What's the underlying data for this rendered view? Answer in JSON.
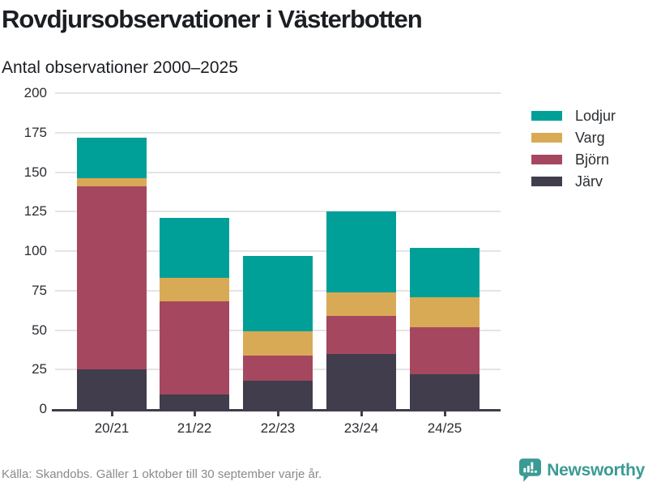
{
  "header": {
    "title": "Rovdjursobservationer i Västerbotten",
    "subtitle": "Antal observationer 2000–2025"
  },
  "legend": [
    {
      "label": "Lodjur",
      "color": "#00a099"
    },
    {
      "label": "Varg",
      "color": "#d9aa55"
    },
    {
      "label": "Björn",
      "color": "#a64760"
    },
    {
      "label": "Järv",
      "color": "#413d4c"
    }
  ],
  "chart_data": {
    "type": "bar",
    "stacked": true,
    "title": "Rovdjursobservationer i Västerbotten",
    "subtitle": "Antal observationer 2000–2025",
    "categories": [
      "20/21",
      "21/22",
      "22/23",
      "23/24",
      "24/25"
    ],
    "series": [
      {
        "name": "Järv",
        "color": "#413d4c",
        "values": [
          25,
          9,
          18,
          35,
          22
        ]
      },
      {
        "name": "Björn",
        "color": "#a64760",
        "values": [
          116,
          59,
          16,
          24,
          30
        ]
      },
      {
        "name": "Varg",
        "color": "#d9aa55",
        "values": [
          5,
          15,
          15,
          15,
          19
        ]
      },
      {
        "name": "Lodjur",
        "color": "#00a099",
        "values": [
          26,
          38,
          48,
          51,
          31
        ]
      }
    ],
    "totals": [
      172,
      121,
      97,
      125,
      102
    ],
    "xlabel": "",
    "ylabel": "Antal observationer",
    "ylim": [
      0,
      200
    ],
    "yticks": [
      0,
      25,
      50,
      75,
      100,
      125,
      150,
      175,
      200
    ],
    "grid": true,
    "legend_position": "right",
    "stack_order_bottom_to_top": [
      "Järv",
      "Björn",
      "Varg",
      "Lodjur"
    ]
  },
  "footer": {
    "source": "Källa: Skandobs. Gäller 1 oktober till 30 september varje år.",
    "brand": "Newsworthy",
    "brand_color": "#3a9b94"
  }
}
